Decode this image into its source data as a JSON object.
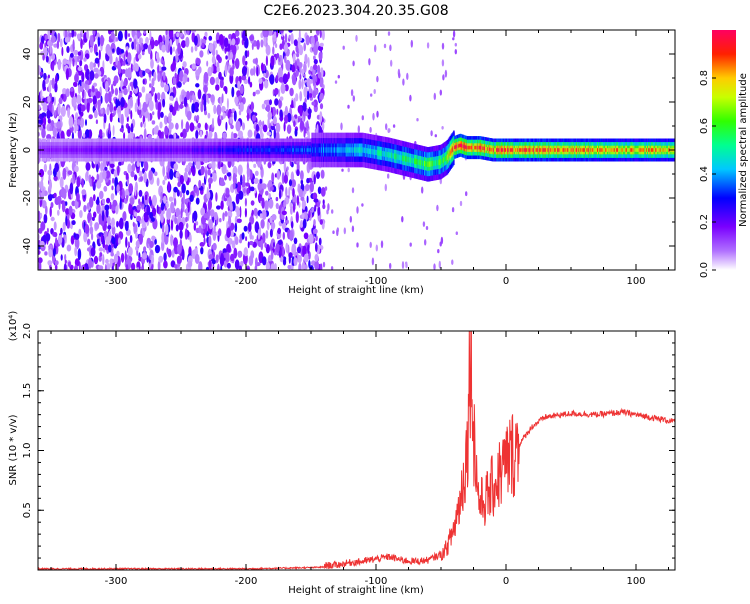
{
  "title": "C2E6.2023.304.20.35.G08",
  "chart_data": [
    {
      "type": "heatmap",
      "xlabel": "Height of straight line (km)",
      "ylabel": "Frequency (Hz)",
      "xlim": [
        -360,
        130
      ],
      "ylim": [
        -50,
        50
      ],
      "x_ticks": [
        -300,
        -200,
        -100,
        0,
        100
      ],
      "x_tick_labels": [
        "-300",
        "-200",
        "-100",
        "0",
        "100"
      ],
      "y_ticks": [
        -40,
        -20,
        0,
        20,
        40
      ],
      "y_tick_labels": [
        "-40",
        "-20",
        "0",
        "20",
        "40"
      ],
      "colorbar": {
        "label": "Normalized spectral amplitude",
        "range": [
          0,
          1
        ],
        "ticks": [
          0,
          0.2,
          0.4,
          0.6,
          0.8
        ],
        "tick_labels": [
          "0.0",
          "0.2",
          "0.4",
          "0.6",
          "0.8"
        ],
        "colormap": [
          "#ffffff",
          "#9b00ff",
          "#0000ff",
          "#00ffff",
          "#00ff00",
          "#ffff00",
          "#ff0000",
          "#ff007f"
        ]
      },
      "ridge": {
        "x": [
          -360,
          -300,
          -250,
          -200,
          -150,
          -130,
          -110,
          -90,
          -75,
          -60,
          -50,
          -45,
          -40,
          -35,
          -30,
          -20,
          -10,
          0,
          50,
          130
        ],
        "freq_hz": [
          0,
          0,
          0,
          0,
          0,
          0,
          0,
          -2,
          -4,
          -6,
          -5,
          -3,
          1,
          2,
          1,
          1,
          0,
          0,
          0,
          0
        ],
        "peak_amplitude": [
          0.15,
          0.2,
          0.2,
          0.3,
          0.35,
          0.4,
          0.45,
          0.5,
          0.55,
          0.6,
          0.6,
          0.7,
          0.85,
          0.9,
          0.9,
          0.9,
          0.85,
          0.9,
          0.85,
          0.8
        ]
      },
      "noise_region": {
        "x_start": -360,
        "x_end": -140,
        "level": "high"
      },
      "grid": false
    },
    {
      "type": "line",
      "xlabel": "Height of straight line (km)",
      "ylabel": "SNR (10 * v/v)",
      "y_multiplier": "(x10⁴)",
      "xlim": [
        -360,
        130
      ],
      "ylim": [
        0,
        2.0
      ],
      "x_ticks": [
        -300,
        -200,
        -100,
        0,
        100
      ],
      "x_tick_labels": [
        "-300",
        "-200",
        "-100",
        "0",
        "100"
      ],
      "y_ticks": [
        0.5,
        1.0,
        1.5,
        2.0
      ],
      "y_tick_labels": [
        "0.5",
        "1.0",
        "1.5",
        "2.0"
      ],
      "series": [
        {
          "color": "#ee3333",
          "x": [
            -360,
            -300,
            -200,
            -150,
            -130,
            -120,
            -110,
            -100,
            -90,
            -80,
            -70,
            -60,
            -50,
            -45,
            -40,
            -35,
            -30,
            -27,
            -25,
            -22,
            -20,
            -15,
            -10,
            -5,
            0,
            10,
            20,
            30,
            50,
            70,
            90,
            110,
            130
          ],
          "y": [
            0.01,
            0.01,
            0.01,
            0.02,
            0.03,
            0.05,
            0.06,
            0.08,
            0.1,
            0.07,
            0.06,
            0.07,
            0.12,
            0.2,
            0.35,
            0.6,
            1.0,
            2.0,
            1.2,
            0.7,
            0.55,
            0.6,
            0.7,
            0.8,
            0.9,
            1.05,
            1.2,
            1.28,
            1.31,
            1.3,
            1.32,
            1.28,
            1.24
          ]
        }
      ],
      "grid": false
    }
  ]
}
